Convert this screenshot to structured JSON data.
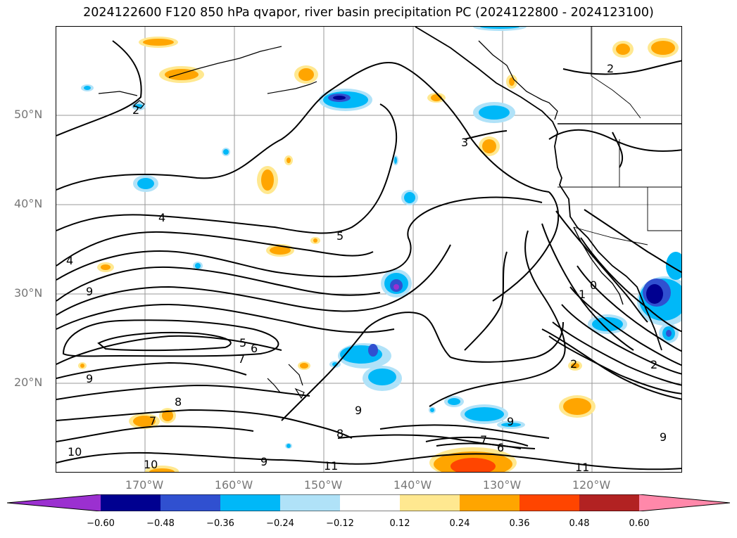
{
  "title": "2024122600 F120 850 hPa qvapor, river basin precipitation PC (2024122800 - 2024123100)",
  "lat_labels": [
    "50°N",
    "40°N",
    "30°N",
    "20°N"
  ],
  "lon_labels": [
    "170°W",
    "160°W",
    "150°W",
    "140°W",
    "130°W",
    "120°W"
  ],
  "colorbar": {
    "ticks": [
      "−0.60",
      "−0.48",
      "−0.36",
      "−0.24",
      "−0.12",
      "0.12",
      "0.24",
      "0.36",
      "0.48",
      "0.60"
    ],
    "colors": [
      "#9b30d0",
      "#000090",
      "#3050d0",
      "#00b8f8",
      "#b0e2f8",
      "#ffffff",
      "#ffe890",
      "#ffa500",
      "#ff4500",
      "#b22222",
      "#ff88aa"
    ]
  },
  "contour_labels": [
    "2",
    "2",
    "3",
    "4",
    "4",
    "5",
    "9",
    "0",
    "1",
    "9",
    "5",
    "6",
    "7",
    "2",
    "2",
    "8",
    "7",
    "9",
    "9",
    "8",
    "9",
    "7",
    "6",
    "10",
    "10",
    "11",
    "11",
    "9"
  ]
}
